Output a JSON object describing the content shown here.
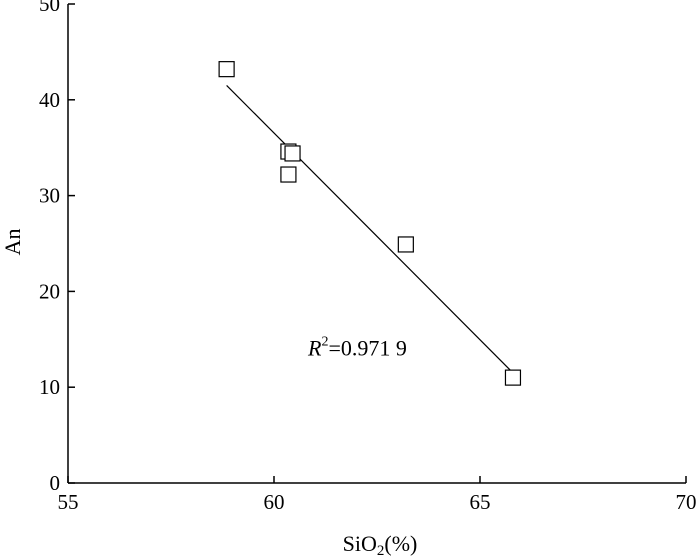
{
  "chart_data": {
    "type": "scatter",
    "xlabel": "SiO2(%)",
    "xlabel_base": "SiO",
    "xlabel_sub": "2",
    "xlabel_suffix": "(%)",
    "ylabel": "An",
    "xlim": [
      55,
      70
    ],
    "ylim": [
      0,
      50
    ],
    "xticks": [
      55,
      60,
      65,
      70
    ],
    "yticks": [
      0,
      10,
      20,
      30,
      40,
      50
    ],
    "grid": false,
    "marker": "open-square",
    "series": [
      {
        "x": [
          58.85,
          60.35,
          60.45,
          60.35,
          63.2,
          65.8
        ],
        "y": [
          43.2,
          34.6,
          34.4,
          32.2,
          24.9,
          11.0
        ]
      }
    ],
    "trendline": {
      "x": [
        58.85,
        65.8
      ],
      "y": [
        41.5,
        11.5
      ]
    },
    "annotation": {
      "var": "R",
      "sup": "2",
      "rest": "=0.971 9",
      "x": 62.5,
      "y": 13.5
    }
  }
}
